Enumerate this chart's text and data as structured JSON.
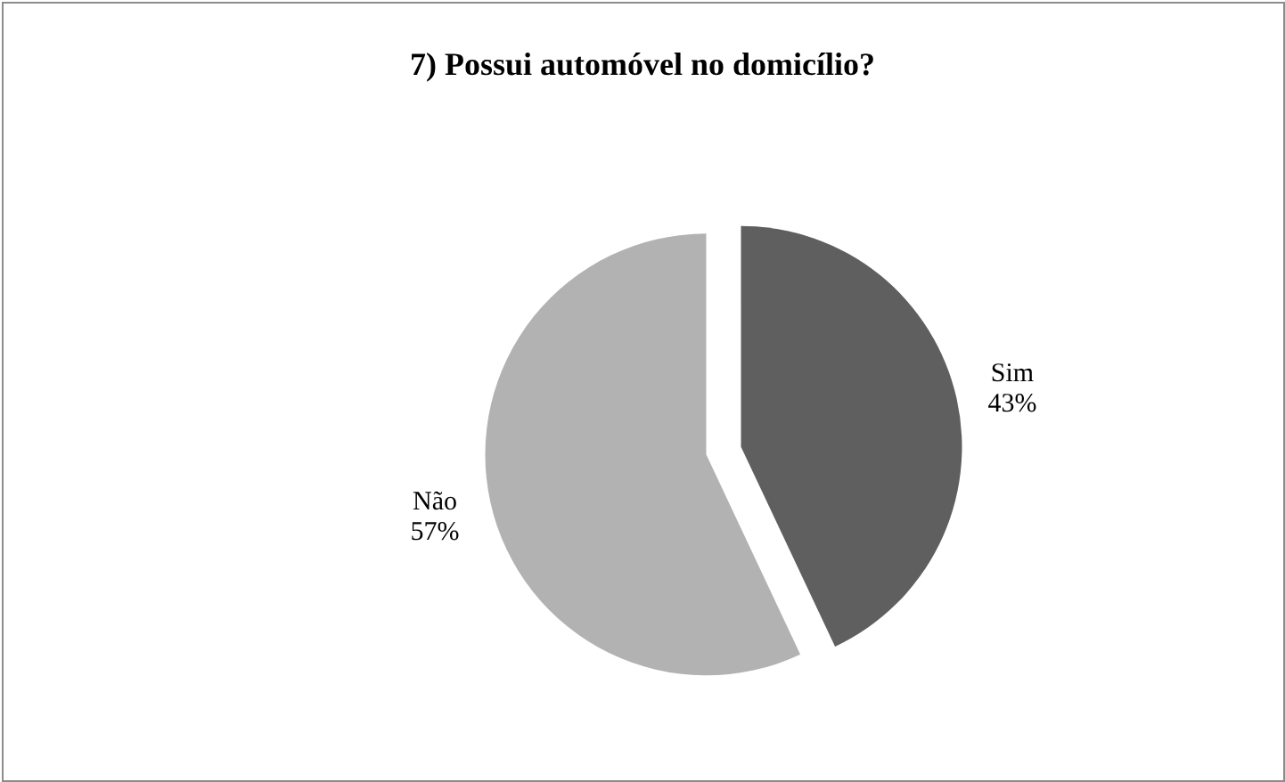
{
  "chart_data": {
    "type": "pie",
    "title": "7) Possui automóvel no domicílio?",
    "categories": [
      "Sim",
      "Não"
    ],
    "values": [
      43,
      57
    ],
    "value_labels": [
      "43%",
      "57%"
    ],
    "colors": [
      "#5f5f5f",
      "#b2b2b2"
    ]
  }
}
